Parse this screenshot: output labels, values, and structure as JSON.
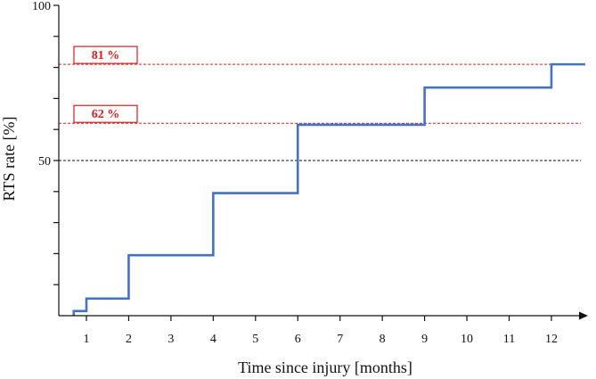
{
  "chart_data": {
    "type": "line",
    "step": true,
    "xlabel": "Time since injury [months]",
    "ylabel": "RTS rate [%]",
    "xlim": [
      0.5,
      12.8
    ],
    "ylim": [
      0,
      100
    ],
    "x_ticks": [
      1,
      2,
      3,
      4,
      5,
      6,
      7,
      8,
      9,
      10,
      11,
      12
    ],
    "y_ticks": [
      10,
      20,
      30,
      40,
      50,
      60,
      70,
      80,
      90,
      100
    ],
    "y_tick_labels": [
      {
        "value": 50,
        "label": "50"
      },
      {
        "value": 100,
        "label": "100"
      }
    ],
    "series": [
      {
        "color": "#4472c4",
        "x": [
          0.7,
          1,
          2,
          4,
          6,
          9,
          12,
          12.8
        ],
        "y": [
          1.5,
          5.5,
          19.5,
          39.5,
          61.5,
          73.5,
          81,
          81
        ]
      }
    ],
    "reference_lines": [
      {
        "y": 81,
        "label": "81 %",
        "color": "#e01b1b",
        "style": "dashed"
      },
      {
        "y": 62,
        "label": "62 %",
        "color": "#e01b1b",
        "style": "dashed"
      },
      {
        "y": 50,
        "label": "",
        "color": "#111111",
        "style": "dashed"
      }
    ],
    "grid": false
  }
}
